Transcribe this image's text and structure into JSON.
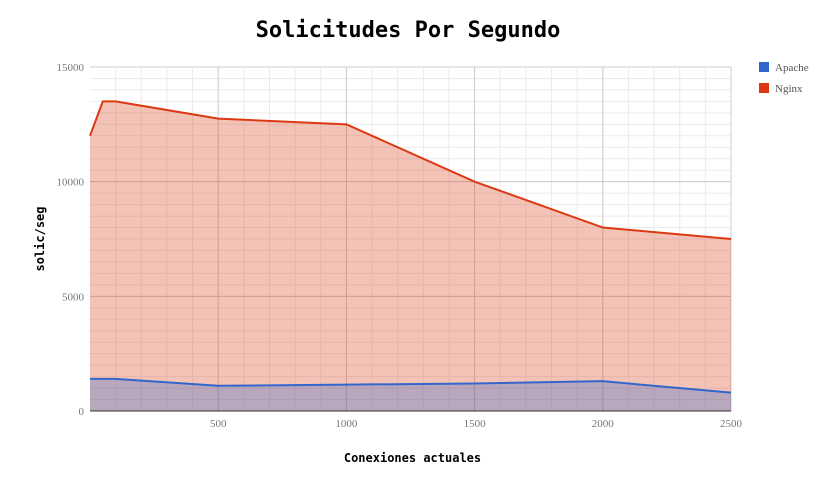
{
  "chart_data": {
    "type": "area",
    "title": "Solicitudes Por Segundo",
    "xlabel": "Conexiones actuales",
    "ylabel": "solic/seg",
    "xlim": [
      0,
      2500
    ],
    "ylim": [
      0,
      15000
    ],
    "x_ticks": [
      500,
      1000,
      1500,
      2000,
      2500
    ],
    "y_ticks": [
      0,
      5000,
      10000,
      15000
    ],
    "grid": true,
    "legend_position": "top-right",
    "series": [
      {
        "name": "Apache",
        "color": "#3366cc",
        "x": [
          0,
          50,
          100,
          500,
          1000,
          1500,
          2000,
          2500
        ],
        "values": [
          1400,
          1400,
          1400,
          1100,
          1150,
          1200,
          1300,
          800
        ]
      },
      {
        "name": "Nginx",
        "color": "#dc3912",
        "x": [
          0,
          50,
          100,
          500,
          1000,
          1500,
          2000,
          2500
        ],
        "values": [
          12000,
          13500,
          13500,
          12750,
          12500,
          10000,
          8000,
          7500
        ]
      }
    ]
  }
}
